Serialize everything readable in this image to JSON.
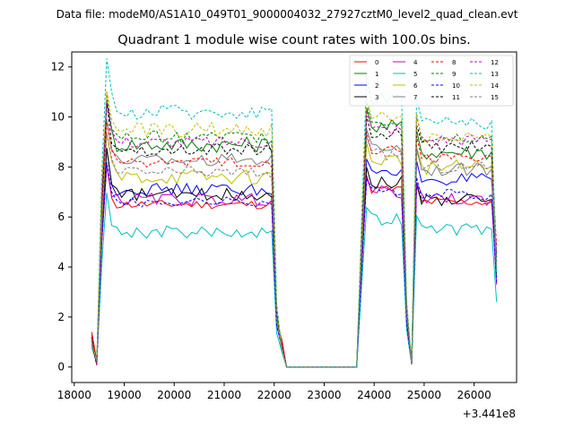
{
  "figure": {
    "suptitle": "Data file: modeM0/AS1A10_049T01_9000004032_27927cztM0_level2_quad_clean.evt"
  },
  "chart_data": {
    "type": "line",
    "title": "Quadrant 1 module wise count rates with 100.0s bins.",
    "xlabel": "",
    "ylabel": "",
    "x_offset_label": "+3.441e8",
    "xlim": [
      17950,
      26850
    ],
    "ylim": [
      -0.62,
      12.6
    ],
    "xticks": [
      18000,
      19000,
      20000,
      21000,
      22000,
      23000,
      24000,
      25000,
      26000
    ],
    "yticks": [
      0,
      2,
      4,
      6,
      8,
      10,
      12
    ],
    "segments": [
      {
        "name": "seg1",
        "x_start": 18350,
        "n": 39
      },
      {
        "name": "gap",
        "x_start": 22250,
        "n": 15
      },
      {
        "name": "seg2",
        "x_start": 23750,
        "n": 11
      },
      {
        "name": "seg3",
        "x_start": 24850,
        "n": 17
      }
    ],
    "series": [
      {
        "name": "0",
        "color": "#ff0000",
        "dash": "solid",
        "level": 6.5,
        "level2": 7.1,
        "level3": 6.6,
        "start": 1.4,
        "end": 4.6,
        "peak": 1.15,
        "noise": 0.18
      },
      {
        "name": "1",
        "color": "#008000",
        "dash": "solid",
        "level": 8.9,
        "level2": 9.6,
        "level3": 8.6,
        "start": 0.8,
        "end": 3.6,
        "peak": 1.12,
        "noise": 0.32
      },
      {
        "name": "2",
        "color": "#0000ff",
        "dash": "solid",
        "level": 7.1,
        "level2": 7.7,
        "level3": 7.5,
        "start": 1.1,
        "end": 4.5,
        "peak": 1.15,
        "noise": 0.25
      },
      {
        "name": "3",
        "color": "#000000",
        "dash": "solid",
        "level": 6.9,
        "level2": 7.4,
        "level3": 6.7,
        "start": 1.2,
        "end": 4.4,
        "peak": 1.18,
        "noise": 0.25
      },
      {
        "name": "4",
        "color": "#c000c0",
        "dash": "solid",
        "level": 6.7,
        "level2": 7.0,
        "level3": 6.7,
        "start": 1.0,
        "end": 3.3,
        "peak": 1.12,
        "noise": 0.25
      },
      {
        "name": "5",
        "color": "#00bfbf",
        "dash": "solid",
        "level": 5.4,
        "level2": 5.9,
        "level3": 5.5,
        "start": 0.8,
        "end": 2.6,
        "peak": 1.18,
        "noise": 0.25
      },
      {
        "name": "6",
        "color": "#bfbf00",
        "dash": "solid",
        "level": 7.6,
        "level2": 8.3,
        "level3": 8.0,
        "start": 0.9,
        "end": 4.0,
        "peak": 1.15,
        "noise": 0.3
      },
      {
        "name": "7",
        "color": "#808080",
        "dash": "solid",
        "level": 8.3,
        "level2": 8.8,
        "level3": 7.9,
        "start": 0.9,
        "end": 3.9,
        "peak": 1.12,
        "noise": 0.25
      },
      {
        "name": "8",
        "color": "#ff0000",
        "dash": "dashed",
        "level": 8.2,
        "level2": 8.7,
        "level3": 8.4,
        "start": 1.3,
        "end": 4.8,
        "peak": 1.12,
        "noise": 0.2
      },
      {
        "name": "9",
        "color": "#008000",
        "dash": "dashed",
        "level": 9.2,
        "level2": 9.8,
        "level3": 9.2,
        "start": 0.9,
        "end": 3.9,
        "peak": 1.12,
        "noise": 0.25
      },
      {
        "name": "10",
        "color": "#0000ff",
        "dash": "dashed",
        "level": 6.6,
        "level2": 7.0,
        "level3": 6.9,
        "start": 1.0,
        "end": 3.4,
        "peak": 1.15,
        "noise": 0.2
      },
      {
        "name": "11",
        "color": "#000000",
        "dash": "dashed",
        "level": 8.7,
        "level2": 9.3,
        "level3": 8.8,
        "start": 1.0,
        "end": 4.2,
        "peak": 1.15,
        "noise": 0.25
      },
      {
        "name": "12",
        "color": "#c000c0",
        "dash": "dashed",
        "level": 9.0,
        "level2": 9.5,
        "level3": 9.1,
        "start": 1.1,
        "end": 4.1,
        "peak": 1.12,
        "noise": 0.25
      },
      {
        "name": "13",
        "color": "#00bfbf",
        "dash": "dashed",
        "level": 10.2,
        "level2": 10.8,
        "level3": 9.8,
        "start": 0.9,
        "end": 3.8,
        "peak": 1.15,
        "noise": 0.3
      },
      {
        "name": "14",
        "color": "#bfbf00",
        "dash": "dashed",
        "level": 9.5,
        "level2": 10.0,
        "level3": 9.2,
        "start": 1.0,
        "end": 4.0,
        "peak": 1.1,
        "noise": 0.3
      },
      {
        "name": "15",
        "color": "#808080",
        "dash": "dashed",
        "level": 7.8,
        "level2": 8.5,
        "level3": 8.0,
        "start": 0.9,
        "end": 3.8,
        "peak": 1.12,
        "noise": 0.25
      }
    ],
    "legend": {
      "columns": 4,
      "placement": "upper-right"
    }
  }
}
